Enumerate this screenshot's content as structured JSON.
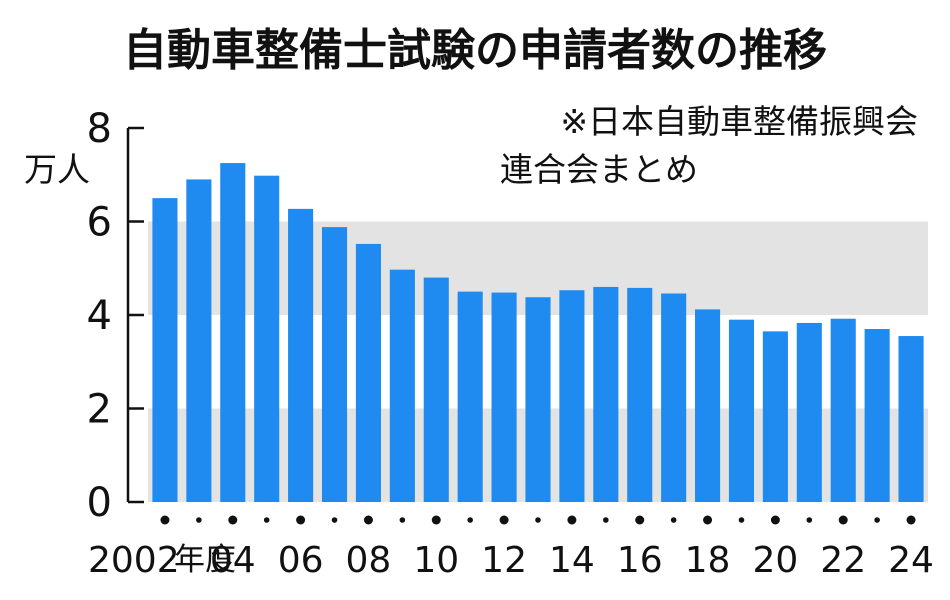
{
  "chart_data": {
    "type": "bar",
    "title": "自動車整備士試験の申請者数の推移",
    "note_lines": [
      "※日本自動車整備振興会",
      "連合会まとめ"
    ],
    "y_unit": "万人",
    "x_first_label": "2002",
    "x_first_suffix": "年度",
    "categories": [
      "2002",
      "2003",
      "2004",
      "2005",
      "2006",
      "2007",
      "2008",
      "2009",
      "2010",
      "2011",
      "2012",
      "2013",
      "2014",
      "2015",
      "2016",
      "2017",
      "2018",
      "2019",
      "2020",
      "2021",
      "2022",
      "2023",
      "2024"
    ],
    "x_tick_labels": [
      "2002",
      "",
      "04",
      "",
      "06",
      "",
      "08",
      "",
      "10",
      "",
      "12",
      "",
      "14",
      "",
      "16",
      "",
      "18",
      "",
      "20",
      "",
      "22",
      "",
      "24"
    ],
    "values": [
      6.5,
      6.9,
      7.25,
      6.98,
      6.27,
      5.88,
      5.52,
      4.97,
      4.8,
      4.5,
      4.48,
      4.38,
      4.53,
      4.6,
      4.58,
      4.46,
      4.12,
      3.9,
      3.65,
      3.83,
      3.92,
      3.7,
      3.55
    ],
    "ylim": [
      0,
      8
    ],
    "y_ticks": [
      "0",
      "2",
      "4",
      "6",
      "8"
    ],
    "grid_bands": [
      [
        0,
        2
      ],
      [
        4,
        6
      ]
    ],
    "colors": {
      "bar": "#1f8bf0",
      "band": "#e3e3e3",
      "axis": "#111111"
    }
  }
}
